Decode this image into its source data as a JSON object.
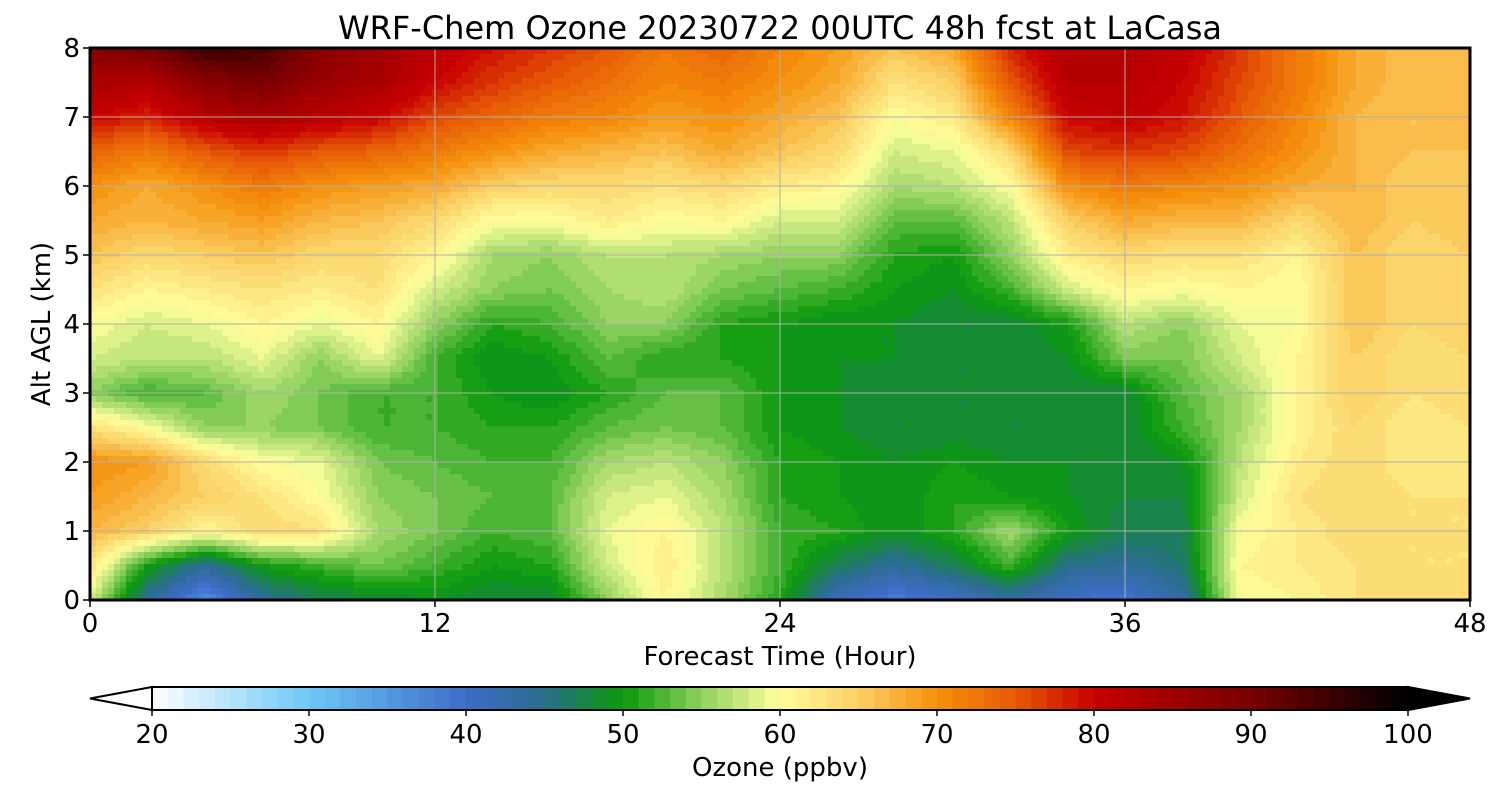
{
  "chart_data": {
    "type": "heatmap",
    "title": "WRF-Chem Ozone  20230722 00UTC 48h fcst at LaCasa",
    "xlabel": "Forecast Time (Hour)",
    "ylabel": "Alt AGL (km)",
    "x_ticks": [
      0,
      12,
      24,
      36,
      48
    ],
    "y_ticks": [
      0,
      1,
      2,
      3,
      4,
      5,
      6,
      7,
      8
    ],
    "xlim": [
      0,
      48
    ],
    "ylim": [
      0,
      8
    ],
    "grid": true,
    "x": [
      0,
      2,
      4,
      6,
      8,
      10,
      12,
      14,
      16,
      18,
      20,
      22,
      24,
      26,
      28,
      30,
      32,
      34,
      36,
      38,
      40,
      42,
      44,
      46,
      48
    ],
    "y": [
      0,
      0.5,
      1,
      1.5,
      2,
      2.5,
      3,
      3.5,
      4,
      4.5,
      5,
      5.5,
      6,
      6.5,
      7,
      7.5,
      8
    ],
    "z": [
      [
        58,
        44,
        36,
        44,
        47,
        48,
        49,
        48,
        48,
        55,
        61,
        56,
        51,
        41,
        38,
        40,
        43,
        40,
        39,
        43,
        60,
        61,
        63,
        64,
        63
      ],
      [
        63,
        50,
        44,
        50,
        52,
        54,
        52,
        50,
        51,
        58,
        62,
        57,
        52,
        47,
        44,
        47,
        52,
        45,
        44,
        46,
        61,
        62,
        63,
        63,
        63
      ],
      [
        67,
        65,
        61,
        64,
        63,
        56,
        54,
        52,
        53,
        59,
        61,
        57,
        52,
        51,
        49,
        51,
        56,
        50,
        47,
        47,
        60,
        62,
        64,
        63,
        63
      ],
      [
        69,
        67,
        65,
        63,
        60,
        55,
        54,
        53,
        53,
        58,
        59,
        56,
        51,
        50,
        49,
        51,
        50,
        49,
        48,
        48,
        58,
        63,
        64,
        63,
        63
      ],
      [
        70,
        69,
        64,
        60,
        59,
        54,
        53,
        52,
        52,
        56,
        57,
        55,
        51,
        50,
        49,
        50,
        49,
        49,
        48,
        49,
        57,
        62,
        64,
        62,
        63
      ],
      [
        63,
        60,
        55,
        55,
        54,
        52,
        52,
        51,
        51,
        53,
        54,
        53,
        50,
        49,
        48,
        48,
        48,
        48,
        48,
        52,
        56,
        61,
        64,
        62,
        63
      ],
      [
        55,
        52,
        53,
        56,
        54,
        52,
        52,
        50,
        49,
        51,
        53,
        53,
        50,
        49,
        48,
        48,
        48,
        48,
        48,
        53,
        56,
        61,
        65,
        63,
        64
      ],
      [
        58,
        57,
        57,
        59,
        55,
        59,
        52,
        49,
        50,
        53,
        51,
        51,
        50,
        49,
        49,
        48,
        48,
        49,
        54,
        54,
        58,
        61,
        65,
        63,
        64
      ],
      [
        60,
        58,
        59,
        61,
        59,
        61,
        55,
        51,
        52,
        55,
        55,
        51,
        50,
        49,
        49,
        48,
        48,
        50,
        57,
        55,
        59,
        60,
        66,
        64,
        65
      ],
      [
        63,
        61,
        62,
        63,
        62,
        63,
        58,
        55,
        54,
        56,
        57,
        54,
        53,
        52,
        50,
        49,
        52,
        58,
        61,
        60,
        61,
        60,
        66,
        64,
        65
      ],
      [
        66,
        64,
        65,
        66,
        64,
        64,
        61,
        56,
        55,
        57,
        57,
        56,
        55,
        55,
        51,
        50,
        55,
        62,
        64,
        63,
        63,
        61,
        66,
        64,
        65
      ],
      [
        68,
        67,
        68,
        69,
        67,
        66,
        64,
        60,
        60,
        62,
        60,
        61,
        58,
        58,
        53,
        53,
        57,
        65,
        68,
        67,
        67,
        64,
        67,
        65,
        66
      ],
      [
        70,
        68,
        70,
        72,
        70,
        69,
        68,
        65,
        64,
        64,
        63,
        64,
        62,
        61,
        56,
        57,
        60,
        70,
        72,
        71,
        70,
        68,
        67,
        65,
        66
      ],
      [
        74,
        72,
        75,
        77,
        75,
        74,
        72,
        70,
        68,
        67,
        66,
        68,
        66,
        64,
        58,
        59,
        64,
        76,
        77,
        76,
        73,
        70,
        67,
        66,
        66
      ],
      [
        80,
        78,
        82,
        84,
        82,
        80,
        76,
        74,
        72,
        71,
        69,
        70,
        68,
        66,
        60,
        62,
        71,
        80,
        81,
        79,
        75,
        71,
        67,
        66,
        66
      ],
      [
        84,
        83,
        88,
        90,
        86,
        84,
        80,
        77,
        75,
        73,
        71,
        72,
        70,
        68,
        63,
        65,
        75,
        82,
        82,
        80,
        76,
        72,
        68,
        66,
        67
      ],
      [
        88,
        90,
        95,
        94,
        88,
        85,
        82,
        79,
        77,
        75,
        72,
        74,
        71,
        69,
        66,
        68,
        78,
        83,
        83,
        81,
        77,
        72,
        68,
        66,
        67
      ]
    ],
    "colorbar": {
      "label": "Ozone  (ppbv)",
      "min": 20,
      "max": 100,
      "step": 1,
      "ticks": [
        20,
        30,
        40,
        50,
        60,
        70,
        80,
        90,
        100
      ],
      "extend": "both",
      "min_color": "#ffffff",
      "max_color": "#000000",
      "stops": [
        {
          "v": 20,
          "c": "#ffffff"
        },
        {
          "v": 30,
          "c": "#6cc8f5"
        },
        {
          "v": 40,
          "c": "#3d6cc8"
        },
        {
          "v": 45,
          "c": "#2a6e8c"
        },
        {
          "v": 50,
          "c": "#0a9a0a"
        },
        {
          "v": 55,
          "c": "#8fd060"
        },
        {
          "v": 60,
          "c": "#ffff9c"
        },
        {
          "v": 65,
          "c": "#fbcf64"
        },
        {
          "v": 70,
          "c": "#f5900c"
        },
        {
          "v": 75,
          "c": "#e65a06"
        },
        {
          "v": 80,
          "c": "#c80000"
        },
        {
          "v": 90,
          "c": "#780000"
        },
        {
          "v": 100,
          "c": "#000000"
        }
      ]
    }
  }
}
